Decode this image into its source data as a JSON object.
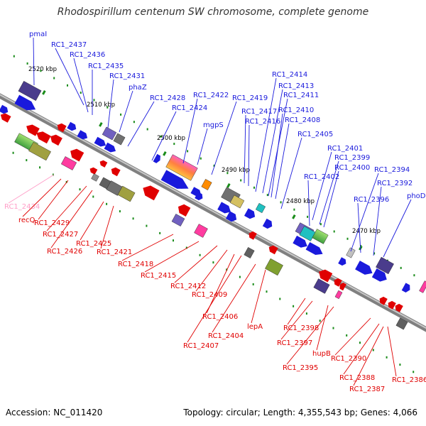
{
  "title": "Rhodospirillum centenum SW chromosome, complete genome",
  "accession": "Accession: NC_011420",
  "topology": "Topology: circular; Length: 4,355,543 bp; Genes: 4,066",
  "colors": {
    "forward": "#1a1adc",
    "reverse": "#e00000",
    "pseudo": "#ff9ec8",
    "backbone": "#808080",
    "tick": "#1a8c1a"
  },
  "kbp_labels": [
    "2520 kbp",
    "2510 kbp",
    "2500 kbp",
    "2490 kbp",
    "2480 kbp",
    "2470 kbp"
  ],
  "forward_genes": [
    "pmaI",
    "RC1_2437",
    "RC1_2436",
    "RC1_2435",
    "RC1_2431",
    "phaZ",
    "RC1_2428",
    "RC1_2424",
    "RC1_2422",
    "mgpS",
    "RC1_2419",
    "RC1_2417",
    "RC1_2416",
    "RC1_2414",
    "RC1_2413",
    "RC1_2411",
    "RC1_2410",
    "RC1_2408",
    "RC1_2405",
    "RC1_2401",
    "RC1_2399",
    "RC1_2400",
    "RC1_2402",
    "RC1_2394",
    "RC1_2396",
    "RC1_2392",
    "phoD"
  ],
  "reverse_genes": [
    "RC1_2434",
    "recQ",
    "RC1_2429",
    "RC1_2427",
    "RC1_2426",
    "RC1_2425",
    "RC1_2421",
    "RC1_2418",
    "RC1_2415",
    "RC1_2412",
    "RC1_2409",
    "RC1_2406",
    "RC1_2407",
    "RC1_2404",
    "lepA",
    "RC1_2398",
    "RC1_2397",
    "hupB",
    "RC1_2395",
    "RC1_2390",
    "RC1_2388",
    "RC1_2387",
    "RC1_2386"
  ]
}
